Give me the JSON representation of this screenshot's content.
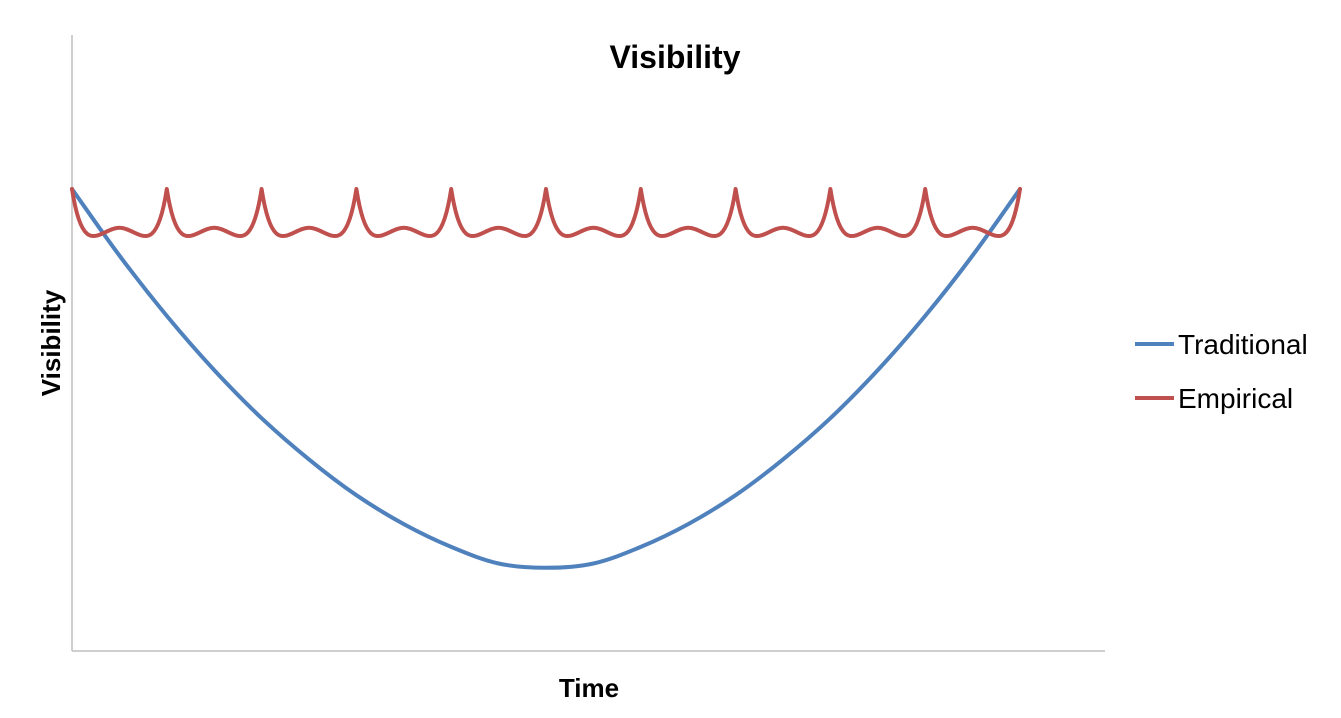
{
  "chart_data": {
    "type": "line",
    "title": "Visibility",
    "xlabel": "Time",
    "ylabel": "Visibility",
    "xlim": [
      0,
      100
    ],
    "ylim": [
      0,
      100
    ],
    "grid": false,
    "show_tick_labels": false,
    "legend_position": "right",
    "series": [
      {
        "name": "Traditional",
        "color": "#4F81BD",
        "x": [
          0,
          5,
          10,
          15,
          20,
          25,
          30,
          35,
          40,
          45,
          50,
          55,
          60,
          65,
          70,
          75,
          80,
          85,
          90,
          95,
          100
        ],
        "values": [
          75.0,
          64.2,
          54.4,
          45.6,
          37.8,
          31.1,
          25.3,
          20.6,
          16.9,
          14.2,
          13.5,
          14.2,
          16.9,
          20.6,
          25.3,
          31.1,
          37.8,
          45.6,
          54.4,
          64.2,
          75.0
        ]
      },
      {
        "name": "Empirical",
        "color": "#C0504D",
        "x": [
          0,
          2.5,
          5,
          7.5,
          10,
          12.5,
          15,
          17.5,
          20,
          22.5,
          25,
          27.5,
          30,
          32.5,
          35,
          37.5,
          40,
          42.5,
          45,
          47.5,
          50,
          52.5,
          55,
          57.5,
          60,
          62.5,
          65,
          67.5,
          70,
          72.5,
          75,
          77.5,
          80,
          82.5,
          85,
          87.5,
          90,
          92.5,
          95,
          97.5,
          100
        ],
        "values": [
          75.0,
          69.9,
          68.7,
          69.9,
          75.0,
          69.9,
          68.7,
          69.9,
          75.0,
          69.9,
          68.7,
          69.9,
          75.0,
          69.9,
          68.7,
          69.9,
          75.0,
          69.9,
          68.7,
          69.9,
          75.0,
          69.9,
          68.7,
          69.9,
          75.0,
          69.9,
          68.7,
          69.9,
          75.0,
          69.9,
          68.7,
          69.9,
          75.0,
          69.9,
          68.7,
          69.9,
          75.0,
          69.9,
          68.7,
          69.9,
          75.0
        ]
      }
    ]
  }
}
